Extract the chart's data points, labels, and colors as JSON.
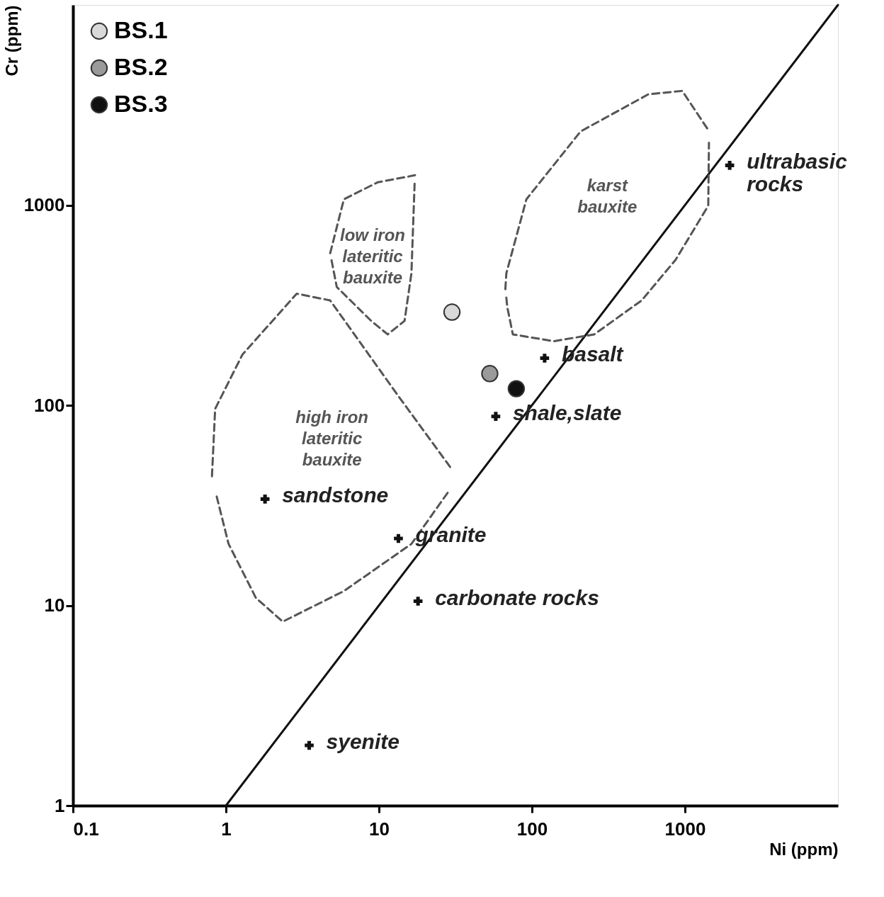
{
  "chart_data": {
    "type": "scatter",
    "xlabel": "Ni (ppm)",
    "ylabel": "Cr (ppm)",
    "log": "xy",
    "xlim": [
      0.1,
      10000
    ],
    "ylim": [
      1,
      10000
    ],
    "xticks": [
      0.1,
      1,
      10,
      100,
      1000
    ],
    "yticks": [
      1,
      10,
      100,
      1000
    ],
    "grid": false,
    "legend": "top left",
    "series": [
      {
        "type": "line",
        "color": "#111111",
        "line_style": "solid",
        "marker": "none",
        "x": [
          1,
          10000
        ],
        "values": [
          1,
          10000
        ]
      },
      {
        "name": "low iron\nlateritic\nbauxite",
        "type": "line",
        "color": "#555555",
        "line_style": "dashed",
        "marker": "none",
        "x": [
          4.8,
          5.9,
          9.8,
          17.2
        ],
        "values": [
          575,
          1070,
          1300,
          1410
        ]
      },
      {
        "type": "line",
        "color": "#555555",
        "line_style": "dashed",
        "marker": "none",
        "x": [
          4.9,
          5.3,
          8.9,
          11.4,
          14.7,
          16.3,
          17.1
        ],
        "values": [
          530,
          390,
          264,
          226,
          264,
          456,
          1280
        ]
      },
      {
        "name": "high iron\nlateritic\nbauxite",
        "type": "line",
        "color": "#555555",
        "line_style": "dashed",
        "marker": "none",
        "x": [
          0.81,
          0.85,
          1.28,
          2.9,
          4.8,
          13.3,
          30
        ],
        "values": [
          44.2,
          96,
          179,
          361,
          334,
          112,
          47.8
        ]
      },
      {
        "type": "line",
        "color": "#555555",
        "line_style": "dashed",
        "marker": "none",
        "x": [
          0.87,
          1.04,
          1.57,
          2.35,
          5.9,
          16.3,
          29
        ],
        "values": [
          35,
          20.3,
          10.9,
          8.3,
          11.8,
          20.3,
          37.8
        ]
      },
      {
        "name": "karst\nbauxite",
        "type": "line",
        "color": "#555555",
        "line_style": "dashed",
        "marker": "none",
        "x": [
          67,
          68,
          92,
          208,
          577,
          960,
          1440
        ],
        "values": [
          380,
          456,
          1070,
          2335,
          3580,
          3720,
          2335
        ]
      },
      {
        "type": "line",
        "color": "#555555",
        "line_style": "dashed",
        "marker": "none",
        "x": [
          68,
          69,
          75,
          139,
          255,
          521,
          867,
          1420,
          1435
        ],
        "values": [
          345,
          309,
          226,
          209,
          226,
          334,
          532,
          993,
          2050
        ]
      },
      {
        "color": "#111111",
        "marker": "cross",
        "x": [
          1960,
          121,
          58,
          1.8,
          13.4,
          18,
          3.5
        ],
        "values": [
          1580,
          172,
          88,
          34,
          21.6,
          10.5,
          2.0
        ]
      },
      {
        "name": "BS.1",
        "color": "#d9d9d9",
        "marker": "circle",
        "x": [
          30
        ],
        "values": [
          292
        ]
      },
      {
        "name": "BS.2",
        "color": "#9a9a9a",
        "marker": "circle",
        "x": [
          53
        ],
        "values": [
          144
        ]
      },
      {
        "name": "BS.3",
        "color": "#111111",
        "marker": "circle",
        "x": [
          79
        ],
        "values": [
          121
        ]
      }
    ],
    "annotations": [
      {
        "text": "ultrabasic\nrocks",
        "x": 1960,
        "y": 1580
      },
      {
        "text": "basalt",
        "x": 121,
        "y": 172
      },
      {
        "text": "shale,slate",
        "x": 58,
        "y": 88
      },
      {
        "text": "sandstone",
        "x": 1.8,
        "y": 34
      },
      {
        "text": "granite",
        "x": 13.4,
        "y": 21.6
      },
      {
        "text": "carbonate rocks",
        "x": 18,
        "y": 10.5
      },
      {
        "text": "syenite",
        "x": 3.5,
        "y": 2.0
      }
    ]
  }
}
